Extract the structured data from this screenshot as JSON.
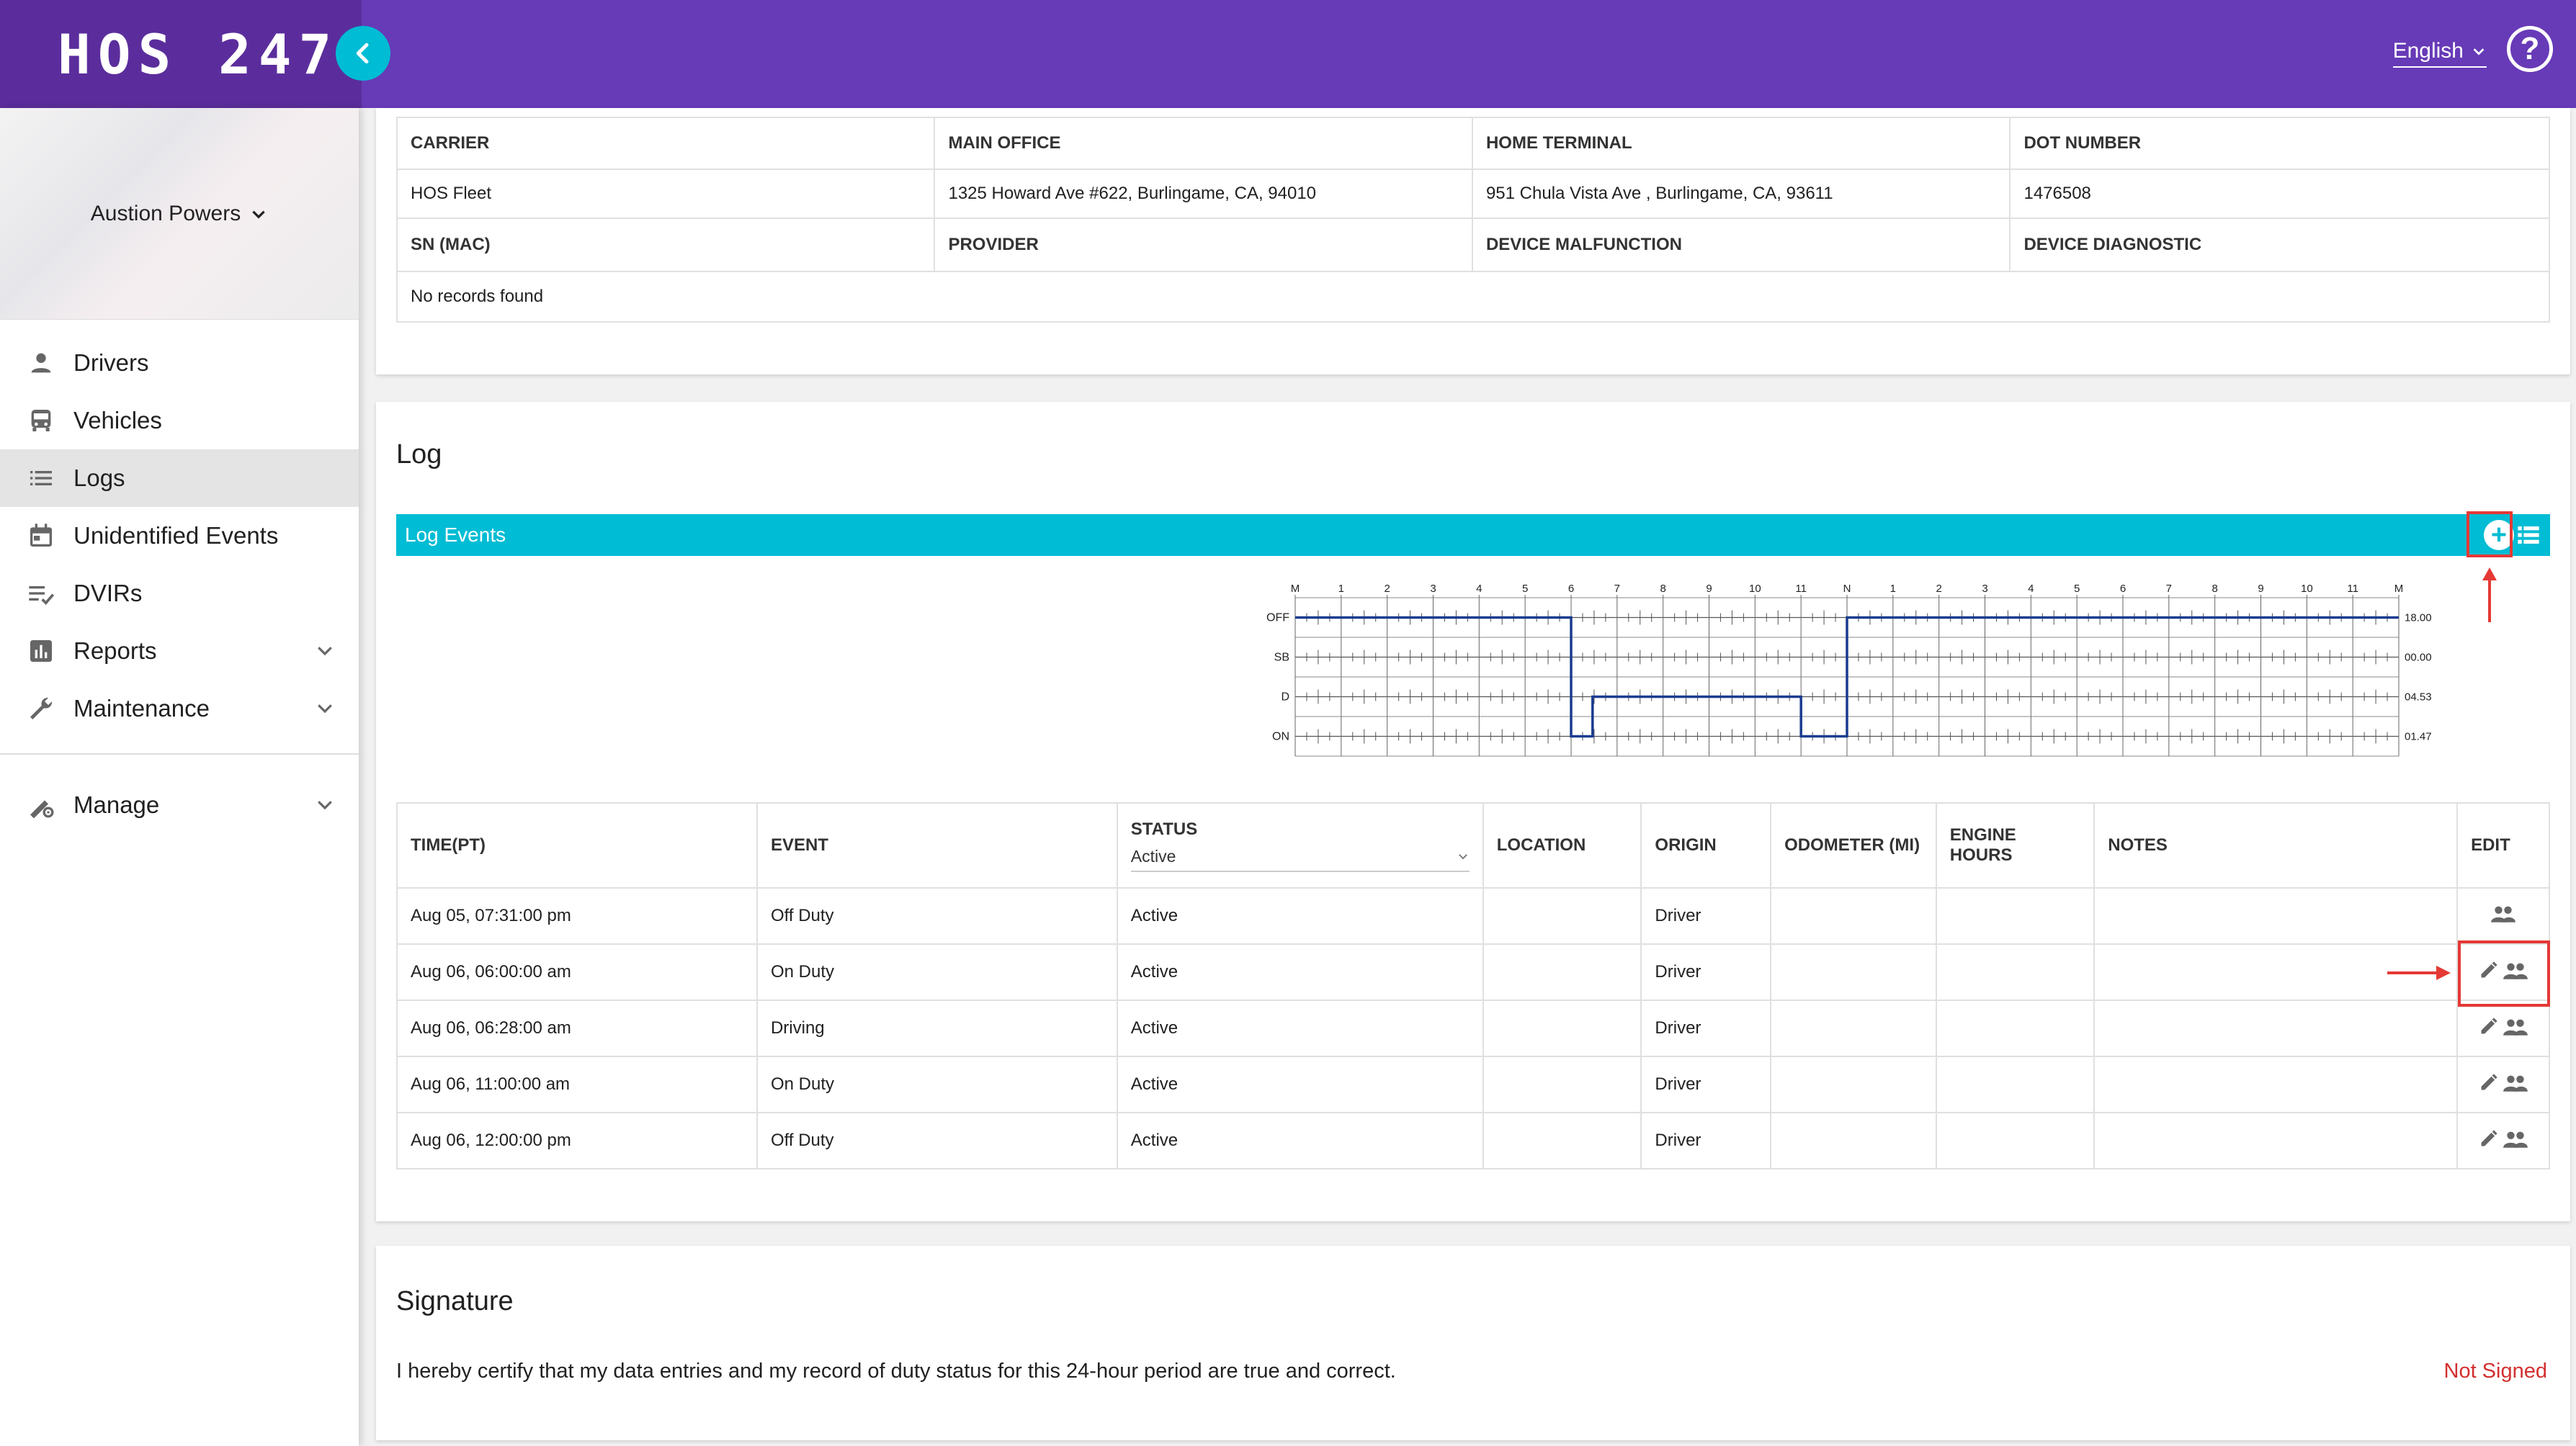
{
  "header": {
    "logo": "HOS 247",
    "language": "English"
  },
  "sidebar": {
    "user": "Austion Powers",
    "items": [
      {
        "label": "Drivers"
      },
      {
        "label": "Vehicles"
      },
      {
        "label": "Logs"
      },
      {
        "label": "Unidentified Events"
      },
      {
        "label": "DVIRs"
      },
      {
        "label": "Reports"
      },
      {
        "label": "Maintenance"
      },
      {
        "label": "Manage"
      }
    ]
  },
  "carrier": {
    "headers1": [
      "CARRIER",
      "MAIN OFFICE",
      "HOME TERMINAL",
      "DOT NUMBER"
    ],
    "values1": [
      "HOS Fleet",
      "1325 Howard Ave #622, Burlingame, CA, 94010",
      "951 Chula Vista Ave , Burlingame, CA, 93611",
      "1476508"
    ],
    "headers2": [
      "SN (MAC)",
      "PROVIDER",
      "DEVICE MALFUNCTION",
      "DEVICE DIAGNOSTIC"
    ],
    "empty": "No records found"
  },
  "log": {
    "title": "Log",
    "events_label": "Log Events",
    "chart": {
      "hour_labels": [
        "M",
        "1",
        "2",
        "3",
        "4",
        "5",
        "6",
        "7",
        "8",
        "9",
        "10",
        "11",
        "N",
        "1",
        "2",
        "3",
        "4",
        "5",
        "6",
        "7",
        "8",
        "9",
        "10",
        "11",
        "M"
      ],
      "rows": [
        "OFF",
        "SB",
        "D",
        "ON"
      ],
      "totals": [
        "18.00",
        "00.00",
        "04.53",
        "01.47"
      ]
    },
    "columns": [
      "TIME(PT)",
      "EVENT",
      "STATUS",
      "LOCATION",
      "ORIGIN",
      "ODOMETER (MI)",
      "ENGINE HOURS",
      "NOTES",
      "EDIT"
    ],
    "status_filter": "Active",
    "rows": [
      {
        "time": "Aug 05, 07:31:00 pm",
        "event": "Off Duty",
        "status": "Active",
        "location": "",
        "origin": "Driver"
      },
      {
        "time": "Aug 06, 06:00:00 am",
        "event": "On Duty",
        "status": "Active",
        "location": "",
        "origin": "Driver"
      },
      {
        "time": "Aug 06, 06:28:00 am",
        "event": "Driving",
        "status": "Active",
        "location": "",
        "origin": "Driver"
      },
      {
        "time": "Aug 06, 11:00:00 am",
        "event": "On Duty",
        "status": "Active",
        "location": "",
        "origin": "Driver"
      },
      {
        "time": "Aug 06, 12:00:00 pm",
        "event": "Off Duty",
        "status": "Active",
        "location": "",
        "origin": "Driver"
      }
    ]
  },
  "signature": {
    "title": "Signature",
    "text": "I hereby certify that my data entries and my record of duty status for this 24-hour period are true and correct.",
    "status": "Not Signed"
  },
  "colors": {
    "purple": "#673ab7",
    "cyan": "#00bcd4",
    "annotation": "#e53935"
  }
}
